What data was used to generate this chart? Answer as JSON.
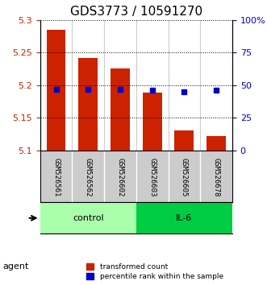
{
  "title": "GDS3773 / 10591270",
  "samples": [
    "GSM526561",
    "GSM526562",
    "GSM526602",
    "GSM526603",
    "GSM526605",
    "GSM526678"
  ],
  "groups": [
    "control",
    "control",
    "control",
    "IL-6",
    "IL-6",
    "IL-6"
  ],
  "red_values": [
    5.285,
    5.242,
    5.225,
    5.188,
    5.13,
    5.122
  ],
  "blue_values": [
    47,
    47,
    47,
    46,
    45,
    46
  ],
  "ylim_left": [
    5.1,
    5.3
  ],
  "ylim_right": [
    0,
    100
  ],
  "yticks_left": [
    5.1,
    5.15,
    5.2,
    5.25,
    5.3
  ],
  "yticks_right": [
    0,
    25,
    50,
    75,
    100
  ],
  "ytick_labels_left": [
    "5.1",
    "5.15",
    "5.2",
    "5.25",
    "5.3"
  ],
  "ytick_labels_right": [
    "0",
    "25",
    "50",
    "75",
    "100%"
  ],
  "bar_bottom": 5.1,
  "bar_width": 0.6,
  "red_color": "#cc2200",
  "blue_color": "#0000cc",
  "control_color": "#aaffaa",
  "il6_color": "#00cc44",
  "sample_bg_color": "#cccccc",
  "agent_label": "agent",
  "group_labels": [
    "control",
    "IL-6"
  ],
  "legend_red": "transformed count",
  "legend_blue": "percentile rank within the sample",
  "grid_color": "#000000",
  "title_fontsize": 11
}
